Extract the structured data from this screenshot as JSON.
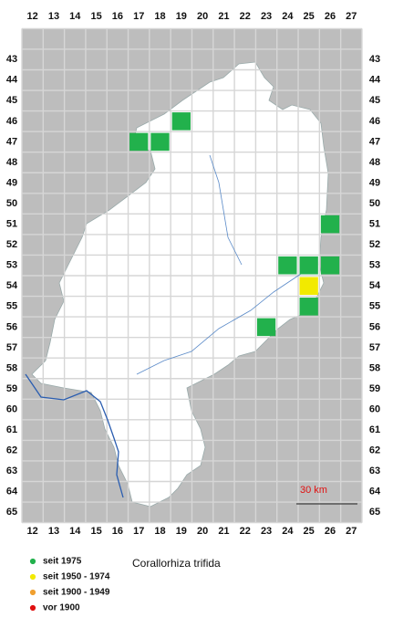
{
  "columns": [
    12,
    13,
    14,
    15,
    16,
    17,
    18,
    19,
    20,
    21,
    22,
    23,
    24,
    25,
    26,
    27
  ],
  "rows": [
    43,
    44,
    45,
    46,
    47,
    48,
    49,
    50,
    51,
    52,
    53,
    54,
    55,
    56,
    57,
    58,
    59,
    60,
    61,
    62,
    63,
    64,
    65
  ],
  "title": "Corallorhiza trifida",
  "scale_label": "30 km",
  "legend": [
    {
      "name": "seit 1975",
      "color": "#22b14c"
    },
    {
      "name": "seit 1950 - 1974",
      "color": "#f2ea00"
    },
    {
      "name": "seit 1900 - 1949",
      "color": "#f0a030"
    },
    {
      "name": "vor 1900",
      "color": "#e01010"
    }
  ],
  "records": [
    {
      "col": 19,
      "row": 46,
      "legend": "seit 1975"
    },
    {
      "col": 17,
      "row": 47,
      "legend": "seit 1975"
    },
    {
      "col": 18,
      "row": 47,
      "legend": "seit 1975"
    },
    {
      "col": 26,
      "row": 51,
      "legend": "seit 1975"
    },
    {
      "col": 24,
      "row": 53,
      "legend": "seit 1975"
    },
    {
      "col": 25,
      "row": 53,
      "legend": "seit 1975"
    },
    {
      "col": 26,
      "row": 53,
      "legend": "seit 1975"
    },
    {
      "col": 25,
      "row": 54,
      "legend": "seit 1950 - 1974"
    },
    {
      "col": 25,
      "row": 55,
      "legend": "seit 1975"
    },
    {
      "col": 23,
      "row": 56,
      "legend": "seit 1975"
    }
  ]
}
